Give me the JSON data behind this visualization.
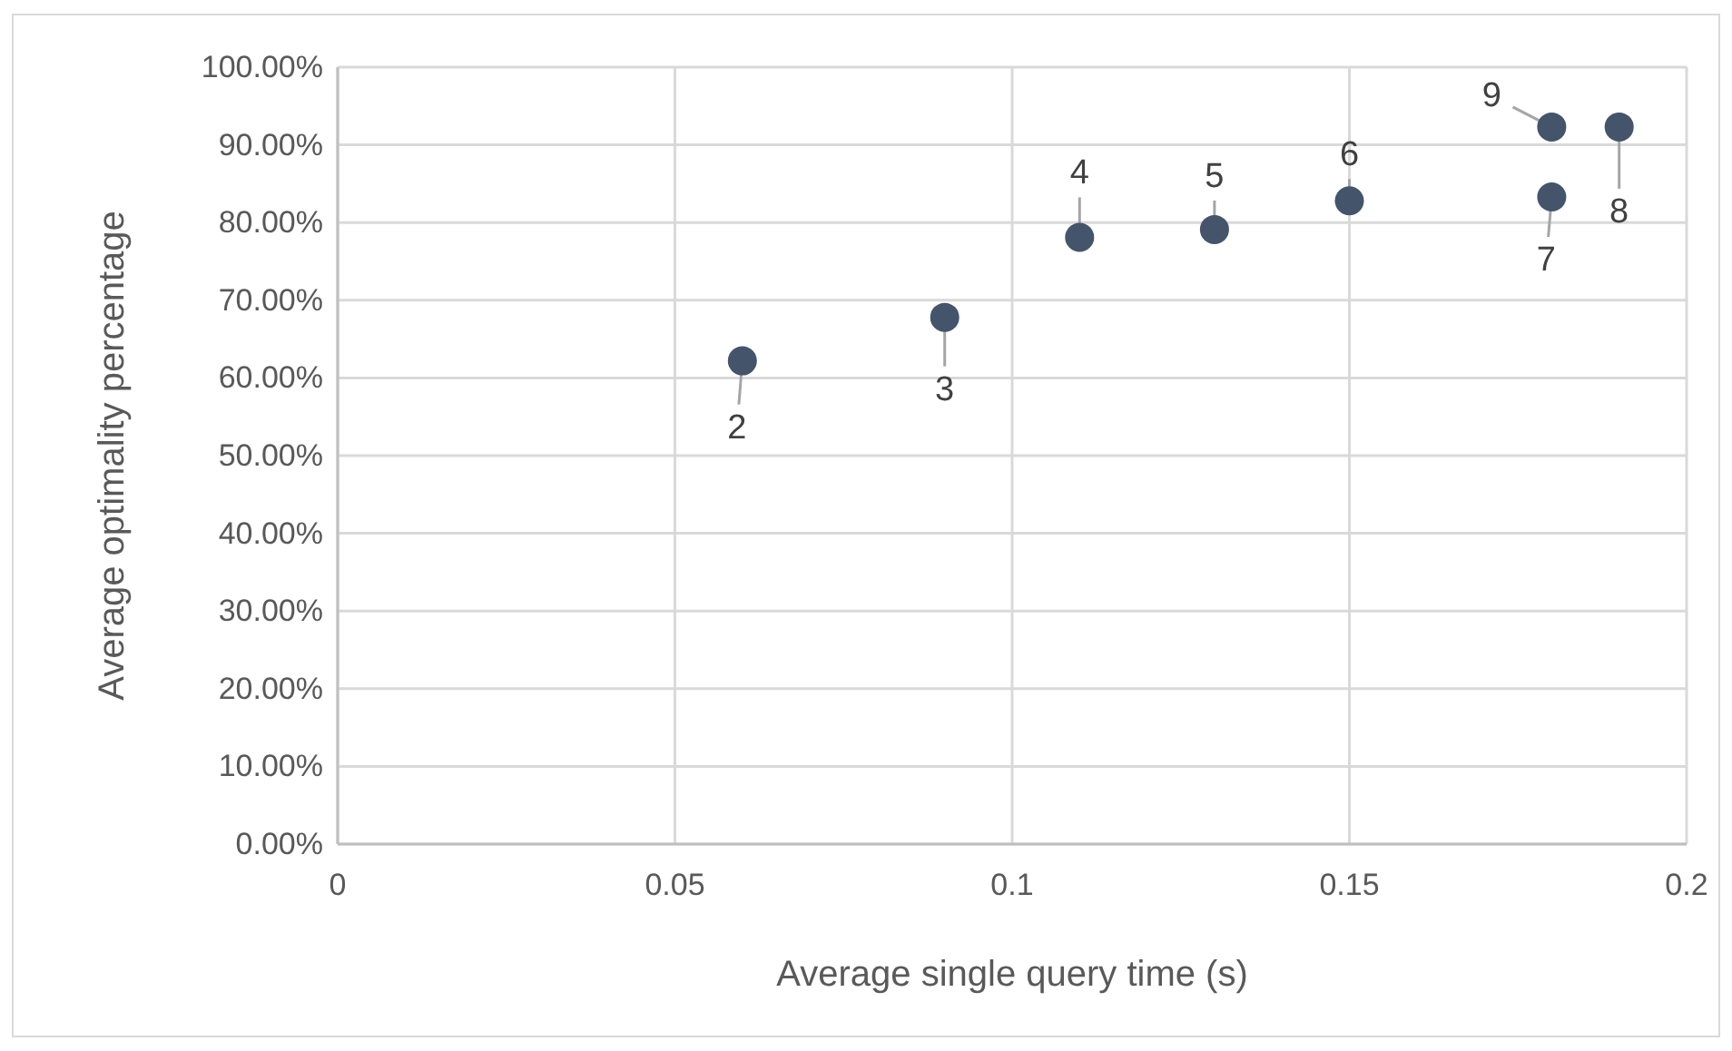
{
  "chart_data": {
    "type": "scatter",
    "xlabel": "Average single query time (s)",
    "ylabel": "Average optimality percentage",
    "x": [
      0.06,
      0.09,
      0.11,
      0.13,
      0.15,
      0.18,
      0.19,
      0.18
    ],
    "series": [
      {
        "color": "#44546a",
        "values": [
          62.2,
          67.8,
          78.1,
          79.1,
          82.8,
          83.3,
          92.3,
          92.3
        ]
      }
    ],
    "annotations": [
      {
        "text": "2",
        "x": 0.06,
        "y": 62.2
      },
      {
        "text": "3",
        "x": 0.09,
        "y": 67.8
      },
      {
        "text": "4",
        "x": 0.11,
        "y": 78.1
      },
      {
        "text": "5",
        "x": 0.13,
        "y": 79.1
      },
      {
        "text": "6",
        "x": 0.15,
        "y": 82.8
      },
      {
        "text": "7",
        "x": 0.18,
        "y": 83.3
      },
      {
        "text": "8",
        "x": 0.19,
        "y": 92.3
      },
      {
        "text": "9",
        "x": 0.18,
        "y": 92.3
      }
    ],
    "xlim": [
      0,
      0.2
    ],
    "xticks": [
      0,
      0.05,
      0.1,
      0.15,
      0.2
    ],
    "ylim": [
      0,
      100
    ],
    "yticks": [
      {
        "value": 0,
        "label": "0.00%"
      },
      {
        "value": 10,
        "label": "10.00%"
      },
      {
        "value": 20,
        "label": "20.00%"
      },
      {
        "value": 30,
        "label": "30.00%"
      },
      {
        "value": 40,
        "label": "40.00%"
      },
      {
        "value": 50,
        "label": "50.00%"
      },
      {
        "value": 60,
        "label": "60.00%"
      },
      {
        "value": 70,
        "label": "70.00%"
      },
      {
        "value": 80,
        "label": "80.00%"
      },
      {
        "value": 90,
        "label": "90.00%"
      },
      {
        "value": 100,
        "label": "100.00%"
      }
    ],
    "grid": true,
    "marker": "circle"
  }
}
